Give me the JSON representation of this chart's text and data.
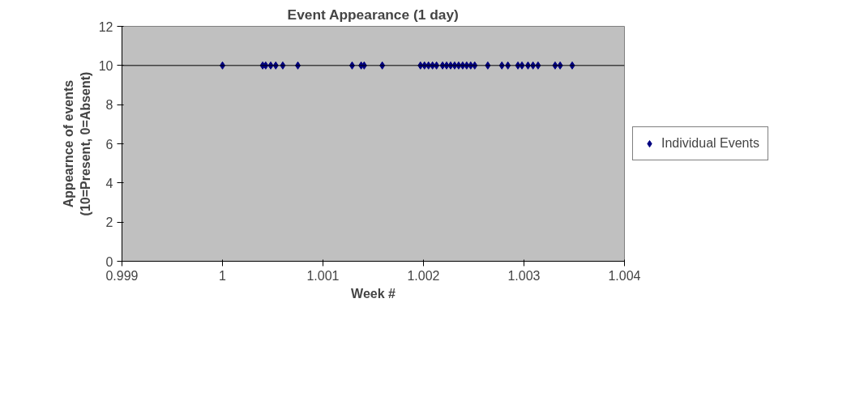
{
  "chart_data": {
    "type": "scatter",
    "title": "Event Appearance (1 day)",
    "xlabel": "Week #",
    "ylabel": "Appearnce of events\n(10=Present, 0=Absent)",
    "xlim": [
      0.999,
      1.004
    ],
    "xticks": [
      0.999,
      1,
      1.001,
      1.002,
      1.003,
      1.004
    ],
    "ylim": [
      0,
      12
    ],
    "yticks": [
      0,
      2,
      4,
      6,
      8,
      10,
      12
    ],
    "grid": false,
    "legend": "right",
    "marker": "diamond",
    "ref_lines": [
      {
        "axis": "y",
        "value": 10,
        "color": "#000000"
      }
    ],
    "series": [
      {
        "name": "Individual Events",
        "color": "#000080",
        "x": [
          1.0,
          1.0004,
          1.00043,
          1.00048,
          1.00053,
          1.0006,
          1.00075,
          1.00129,
          1.00138,
          1.00141,
          1.00159,
          1.00197,
          1.00201,
          1.00205,
          1.00209,
          1.00213,
          1.00219,
          1.00223,
          1.00227,
          1.00231,
          1.00235,
          1.00239,
          1.00243,
          1.00247,
          1.00251,
          1.00264,
          1.00278,
          1.00284,
          1.00294,
          1.00298,
          1.00304,
          1.00309,
          1.00314,
          1.00331,
          1.00336,
          1.00348
        ],
        "values": [
          10,
          10,
          10,
          10,
          10,
          10,
          10,
          10,
          10,
          10,
          10,
          10,
          10,
          10,
          10,
          10,
          10,
          10,
          10,
          10,
          10,
          10,
          10,
          10,
          10,
          10,
          10,
          10,
          10,
          10,
          10,
          10,
          10,
          10,
          10,
          10
        ]
      }
    ]
  }
}
